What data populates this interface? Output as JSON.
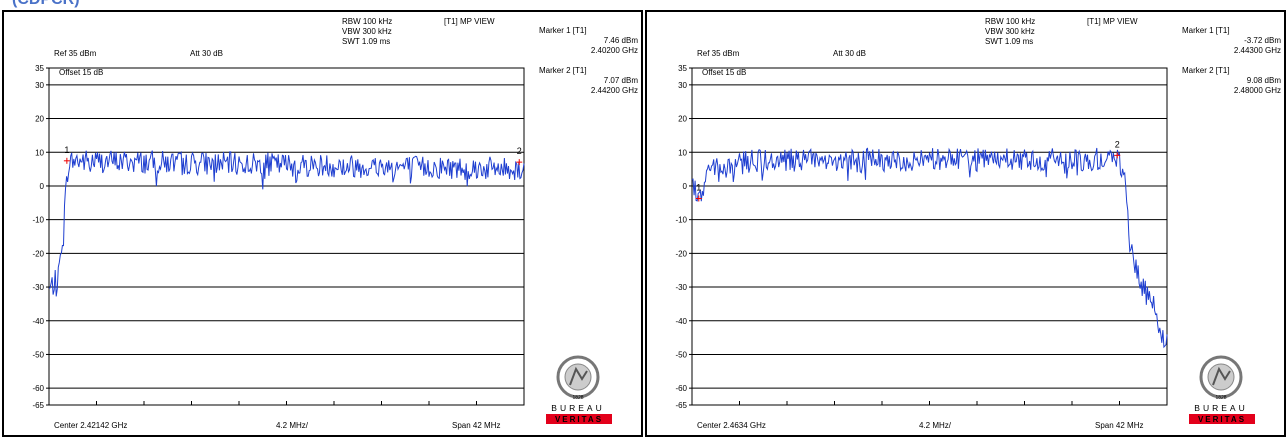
{
  "header": {
    "label": "(CDPCR)"
  },
  "chart_data": [
    {
      "type": "line",
      "title": "",
      "settings": {
        "rbw": "RBW 100 kHz",
        "vbw": "VBW 300 kHz",
        "swt": "SWT 1.09 ms",
        "mode": "[T1] MP VIEW",
        "ref": "Ref 35 dBm",
        "att": "Att  30 dB",
        "offset": "Offset 15 dB",
        "center": "Center 2.42142 GHz",
        "division": "4.2 MHz/",
        "span": "Span 42 MHz"
      },
      "markers": [
        {
          "label": "Marker 1 [T1]",
          "level": "7.46 dBm",
          "freq": "2.40200 GHz",
          "num": "1",
          "x_ghz": 2.402,
          "y": 7.46
        },
        {
          "label": "Marker 2 [T1]",
          "level": "7.07 dBm",
          "freq": "2.44200 GHz",
          "num": "2",
          "x_ghz": 2.442,
          "y": 7.07
        }
      ],
      "y_ticks": [
        35,
        30,
        20,
        10,
        0,
        -10,
        -20,
        -30,
        -40,
        -50,
        -60,
        -65
      ],
      "ylim": [
        -65,
        35
      ],
      "xlim_ghz": [
        2.40042,
        2.44242
      ],
      "x_units": "GHz",
      "profile": [
        [
          2.40042,
          -31
        ],
        [
          2.40084,
          -29
        ],
        [
          2.40126,
          -27
        ],
        [
          2.40168,
          -12
        ],
        [
          2.4021,
          6
        ],
        [
          2.40252,
          7.5
        ],
        [
          2.44242,
          5
        ]
      ],
      "trace_color": "#1f3fd0",
      "grid": true
    },
    {
      "type": "line",
      "title": "",
      "settings": {
        "rbw": "RBW 100 kHz",
        "vbw": "VBW 300 kHz",
        "swt": "SWT 1.09 ms",
        "mode": "[T1] MP VIEW",
        "ref": "Ref 35 dBm",
        "att": "Att  30 dB",
        "offset": "Offset 15 dB",
        "center": "Center 2.4634 GHz",
        "division": "4.2 MHz/",
        "span": "Span 42 MHz"
      },
      "markers": [
        {
          "label": "Marker 1 [T1]",
          "level": "-3.72 dBm",
          "freq": "2.44300 GHz",
          "num": "1",
          "x_ghz": 2.443,
          "y": -3.72
        },
        {
          "label": "Marker 2 [T1]",
          "level": "9.08 dBm",
          "freq": "2.48000 GHz",
          "num": "2",
          "x_ghz": 2.48,
          "y": 9.08
        }
      ],
      "y_ticks": [
        35,
        30,
        20,
        10,
        0,
        -10,
        -20,
        -30,
        -40,
        -50,
        -60,
        -65
      ],
      "ylim": [
        -65,
        35
      ],
      "xlim_ghz": [
        2.4424,
        2.4844
      ],
      "x_units": "GHz",
      "profile": [
        [
          2.4424,
          0
        ],
        [
          2.443,
          -3.7
        ],
        [
          2.444,
          5
        ],
        [
          2.448,
          7.5
        ],
        [
          2.48,
          8
        ],
        [
          2.4806,
          4
        ],
        [
          2.4812,
          -18
        ],
        [
          2.4822,
          -30
        ],
        [
          2.4834,
          -37
        ],
        [
          2.484,
          -44
        ],
        [
          2.4844,
          -45
        ]
      ],
      "trace_color": "#1f3fd0",
      "grid": true
    }
  ],
  "logo": {
    "line1": "BUREAU",
    "line2": "VERITAS",
    "year": "1828",
    "ring": "BUREAU VERITAS"
  }
}
